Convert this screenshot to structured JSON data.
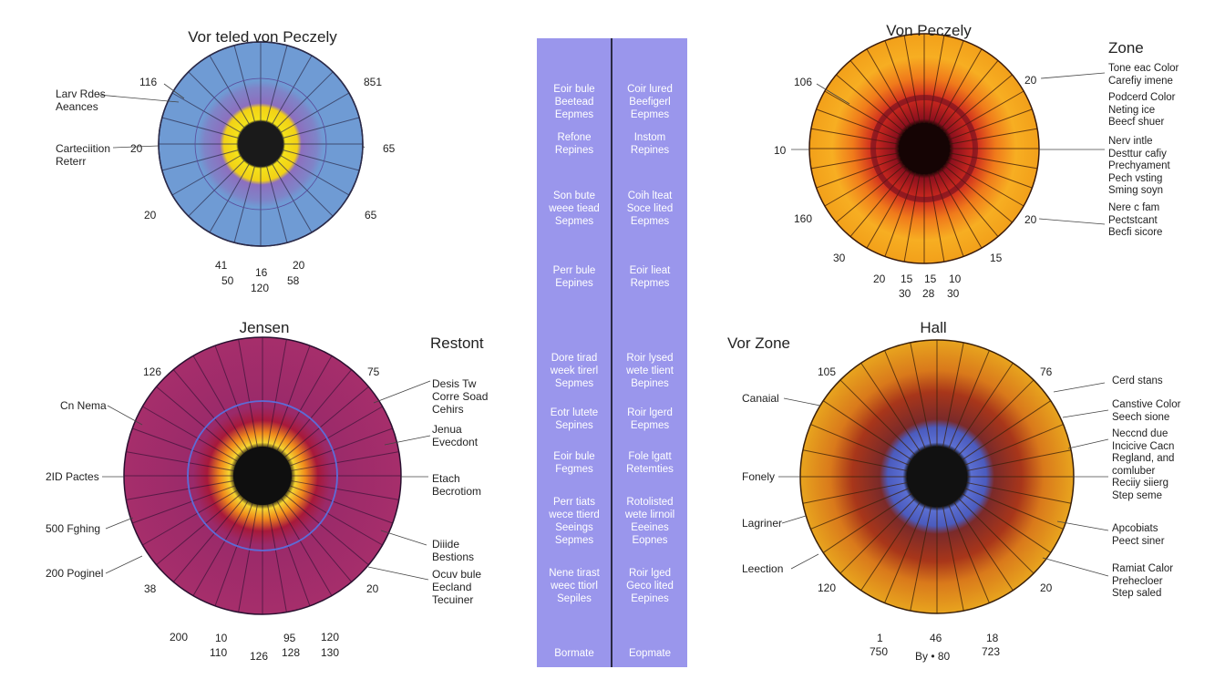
{
  "diagrams": [
    {
      "title": "Vor teled von Peczely",
      "numbers": [
        "116",
        "851",
        "20",
        "65",
        "20",
        "65",
        "41",
        "16",
        "20",
        "50",
        "120",
        "58"
      ],
      "callouts": [
        "Larv Rdes\nAeances",
        "Carteciition\nReterr"
      ]
    },
    {
      "title": "Von Peczely",
      "subtitle": "Zone",
      "numbers": [
        "106",
        "20",
        "10",
        "160",
        "20",
        "30",
        "20",
        "15",
        "15",
        "10",
        "15",
        "30",
        "28",
        "30"
      ],
      "callouts": [
        "Tone eac Color\nCarefiy imene",
        "Podcerd Color\nNeting ice\nBeecf shuer",
        "Nerv intle\nDesttur cafiy\nPrechyament\nPech vsting\nSming soyn",
        "Nere c fam\nPectstcant\nBecfi sicore"
      ]
    },
    {
      "title": "Jensen",
      "subtitle": "Restont",
      "numbers": [
        "126",
        "75",
        "38",
        "20",
        "200",
        "10",
        "110",
        "126",
        "95",
        "128",
        "120",
        "130"
      ],
      "callouts": [
        "Cn Nema",
        "2ID Pactes",
        "500 Fghing",
        "200 Poginel",
        "Desis Tw\nCorre Soad\nCehirs",
        "Jenua\nEvecdont",
        "Etach\nBecrotiom",
        "Diiide\nBestions",
        "Ocuv bule\nEecland\nTecuiner"
      ]
    },
    {
      "title": "Hall",
      "subtitle": "Vor Zone",
      "numbers": [
        "105",
        "76",
        "120",
        "20",
        "1",
        "46",
        "18",
        "750",
        "By • 80",
        "723"
      ],
      "callouts": [
        "Canaial",
        "Fonely",
        "Lagriner",
        "Leection",
        "Cerd stans",
        "Canstive Color\nSeech sione",
        "Neccnd due\nIncicive Cacn\nRegland, and\ncomluber\nReciiy siierg\nStep seme",
        "Apcobiats\nPeect siner",
        "Ramiat Calor\nPrehecloer\nStep saled"
      ]
    }
  ],
  "middle_panel": {
    "left": [
      "Eoir bule\nBeetead\nEepmes",
      "Refone\nRepines",
      "Son bute\nweee tiead\nSepmes",
      "Perr bule\nEepines",
      "Dore tirad\nweek tirerl\nSepmes",
      "Eotr lutete\nSepines",
      "Eoir bule\nFegmes",
      "Perr tiats\nwece ttierd\nSeeings\nSepmes",
      "Nene tirast\nweec ttiorl\nSepiles",
      "Bormate"
    ],
    "right": [
      "Coir lured\nBeefigerl\nEepmes",
      "Instom\nRepines",
      "Coih lteat\nSoce lited\nEepmes",
      "Eoir lieat\nRepmes",
      "Roir lysed\nwete tlient\nBepines",
      "Roir lgerd\nEepmes",
      "Fole lgatt\nRetemties",
      "Rotolisted\nwete lirnoil\nEeeines\nEopnes",
      "Roir lged\nGeco lited\nEepines",
      "Eopmate"
    ]
  },
  "colors": {
    "d1_outer": "#6f9bd4",
    "d1_ring": "#8d6fbe",
    "d1_inner": "#f4e21a",
    "d2_outer": "#f7b51d",
    "d2_mid": "#e74a1b",
    "d2_inner": "#a11622",
    "d3_outer": "#a62e6b",
    "d3_inner": "#f08b1c",
    "d4_outer": "#e8a41e",
    "d4_mid": "#a8361a",
    "d4_inner": "#5b6fd2",
    "middle_panel": "#9a96ec"
  }
}
